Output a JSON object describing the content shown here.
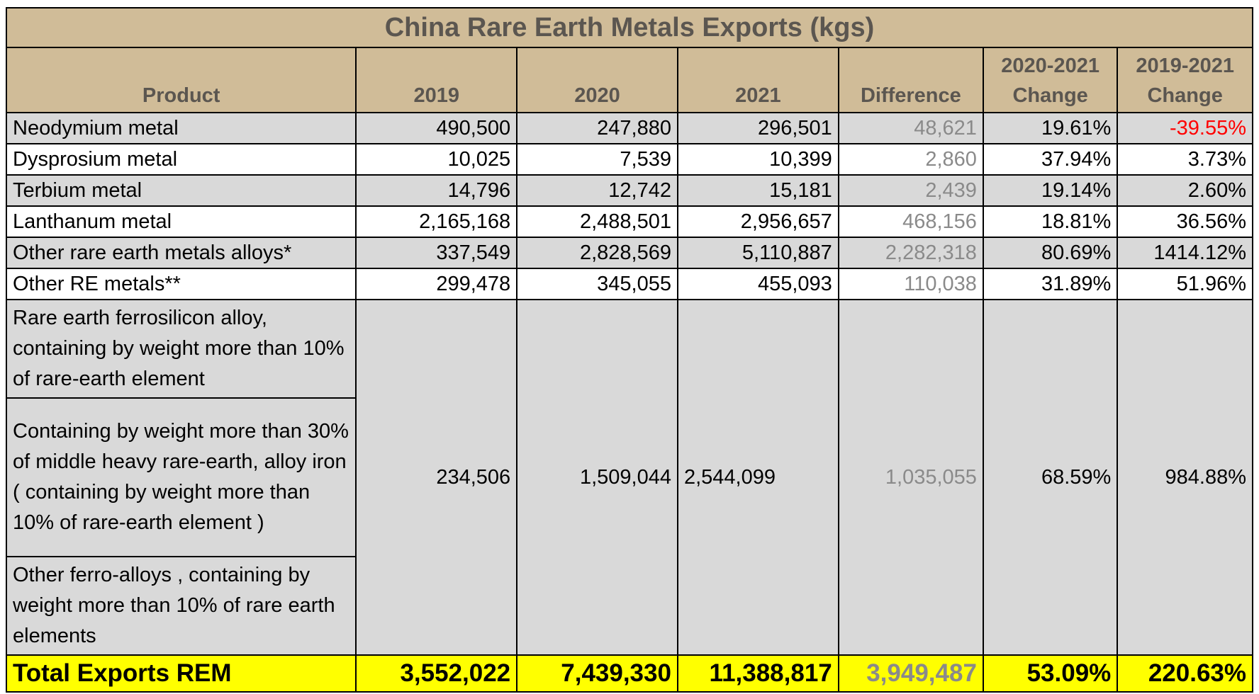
{
  "chart_data": {
    "type": "table",
    "title": "China Rare Earth Metals Exports (kgs)",
    "columns": [
      "Product",
      "2019",
      "2020",
      "2021",
      "Difference",
      "2020-2021 Change",
      "2019-2021 Change"
    ],
    "header": {
      "product": "Product",
      "y2019": "2019",
      "y2020": "2020",
      "y2021": "2021",
      "difference": "Difference",
      "change_2020_2021_line1": "2020-2021",
      "change_2020_2021_line2": "Change",
      "change_2019_2021_line1": "2019-2021",
      "change_2019_2021_line2": "Change"
    },
    "rows": [
      {
        "product": "Neodymium metal",
        "y2019": "490,500",
        "y2020": "247,880",
        "y2021": "296,501",
        "difference": "48,621",
        "change_2020_2021": "19.61%",
        "change_2019_2021": "-39.55%"
      },
      {
        "product": "Dysprosium metal",
        "y2019": "10,025",
        "y2020": "7,539",
        "y2021": "10,399",
        "difference": "2,860",
        "change_2020_2021": "37.94%",
        "change_2019_2021": "3.73%"
      },
      {
        "product": "Terbium metal",
        "y2019": "14,796",
        "y2020": "12,742",
        "y2021": "15,181",
        "difference": "2,439",
        "change_2020_2021": "19.14%",
        "change_2019_2021": "2.60%"
      },
      {
        "product": "Lanthanum metal",
        "y2019": "2,165,168",
        "y2020": "2,488,501",
        "y2021": "2,956,657",
        "difference": "468,156",
        "change_2020_2021": "18.81%",
        "change_2019_2021": "36.56%"
      },
      {
        "product": "Other rare earth metals alloys*",
        "y2019": "337,549",
        "y2020": "2,828,569",
        "y2021": "5,110,887",
        "difference": "2,282,318",
        "change_2020_2021": "80.69%",
        "change_2019_2021": "1414.12%"
      },
      {
        "product": "Other RE metals**",
        "y2019": "299,478",
        "y2020": "345,055",
        "y2021": "455,093",
        "difference": "110,038",
        "change_2020_2021": "31.89%",
        "change_2019_2021": "51.96%"
      }
    ],
    "group": {
      "products": [
        "Rare earth ferrosilicon alloy, containing by weight more than 10% of rare-earth element",
        "Containing by weight more than 30% of middle heavy rare-earth, alloy iron ( containing by weight more than 10% of rare-earth element )",
        "Other ferro-alloys , containing by weight more than 10% of rare earth elements"
      ],
      "y2019": "234,506",
      "y2020": "1,509,044",
      "y2021": "2,544,099",
      "difference": "1,035,055",
      "change_2020_2021": "68.59%",
      "change_2019_2021": "984.88%"
    },
    "total": {
      "product": "Total Exports REM",
      "y2019": "3,552,022",
      "y2020": "7,439,330",
      "y2021": "11,388,817",
      "difference": "3,949,487",
      "change_2020_2021": "53.09%",
      "change_2019_2021": "220.63%"
    },
    "colors": {
      "header_fill": "#d0bc98",
      "header_text": "#5b5650",
      "shaded_row": "#d9d9d9",
      "difference_text": "#8a8a8a",
      "negative_text": "#ff0000",
      "total_fill": "#ffff00"
    }
  }
}
